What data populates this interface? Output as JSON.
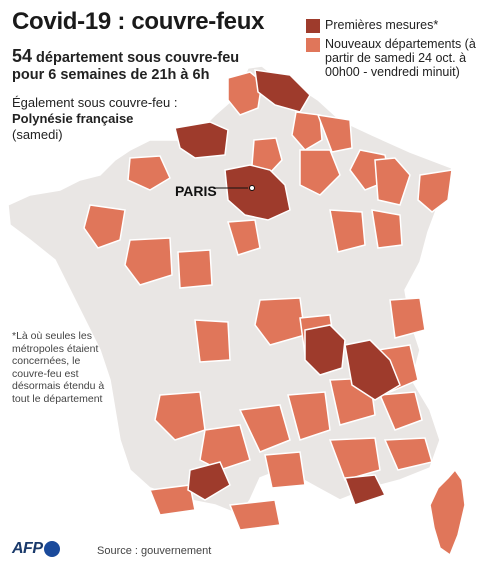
{
  "title": "Covid-19 : couvre-feux",
  "subtitle_number": "54",
  "subtitle_rest": " département sous couvre-feu",
  "subtitle_line2": "pour 6 semaines de 21h à 6h",
  "also_line1": "Également sous couvre-feu :",
  "also_line2": "Polynésie française",
  "also_line3": "(samedi)",
  "legend": [
    {
      "label": "Premières mesures*",
      "color": "#9e3b2c"
    },
    {
      "label": "Nouveaux départements (à partir de samedi 24 oct. à 00h00 - vendredi minuit)",
      "color": "#e0765a"
    }
  ],
  "note": "*Là où seules les métropoles étaient concernées, le couvre-feu est désormais étendu à tout le département",
  "city_label": "PARIS",
  "source": "Source : gouvernement",
  "logo": "AFP",
  "colors": {
    "land": "#e9e6e4",
    "border": "#ffffff",
    "new": "#e0765a",
    "first": "#9e3b2c"
  }
}
